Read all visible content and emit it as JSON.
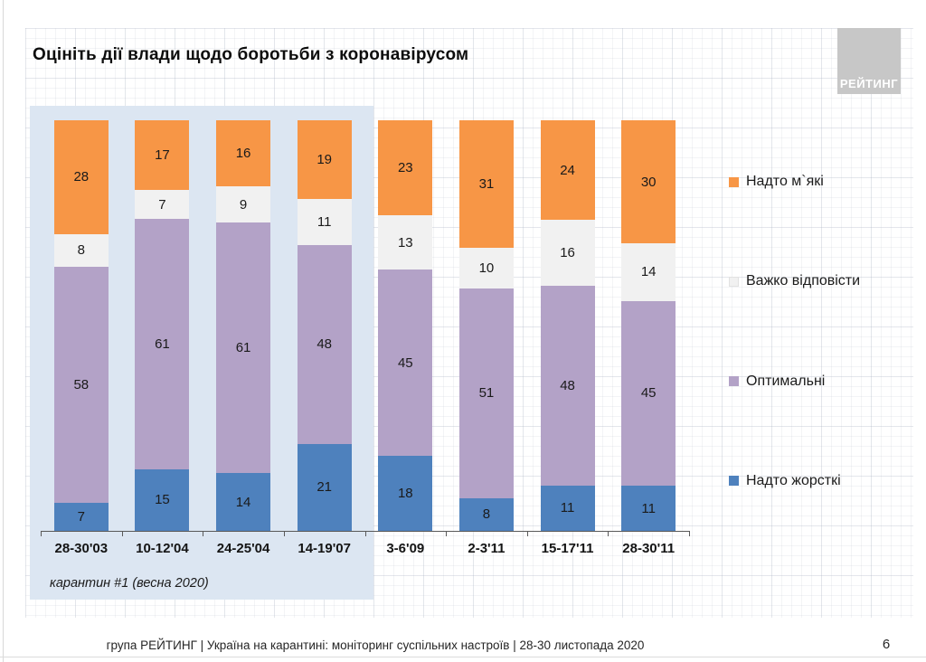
{
  "slide": {
    "title": "Оцініть дії влади щодо боротьби з коронавірусом",
    "logo_text": "РЕЙТИНГ",
    "footer": "група РЕЙТИНГ | Україна на карантині: моніторинг суспільних настроїв | 28-30 листопада 2020",
    "page_number": "6"
  },
  "colors": {
    "too_soft_orange": "#f79646",
    "hard_to_say_white": "#f1f1f1",
    "optimal_purple": "#b3a2c7",
    "too_harsh_blue": "#4e81bd",
    "highlight_background": "#dce6f2",
    "logo_gray": "#c7c7c7",
    "axis_gray": "#595959"
  },
  "chart_data": {
    "type": "bar",
    "stacked": true,
    "percent_scale": true,
    "grid": false,
    "legend_position": "right",
    "categories": [
      "28-30'03",
      "10-12'04",
      "24-25'04",
      "14-19'07",
      "3-6'09",
      "2-3'11",
      "15-17'11",
      "28-30'11"
    ],
    "series": [
      {
        "key": "too-harsh",
        "name": "Надто жорсткі",
        "color": "#4e81bd",
        "values": [
          7,
          15,
          14,
          21,
          18,
          8,
          11,
          11
        ]
      },
      {
        "key": "optimal",
        "name": "Оптимальні",
        "color": "#b3a2c7",
        "values": [
          58,
          61,
          61,
          48,
          45,
          51,
          48,
          45
        ]
      },
      {
        "key": "hard-to-say",
        "name": "Важко відповісти",
        "color": "#f1f1f1",
        "values": [
          8,
          7,
          9,
          11,
          13,
          10,
          16,
          14
        ]
      },
      {
        "key": "too-soft",
        "name": "Надто м`які",
        "color": "#f79646",
        "values": [
          28,
          17,
          16,
          19,
          23,
          31,
          24,
          30
        ]
      }
    ],
    "legend": [
      {
        "key": "too-soft",
        "label": "Надто м`які",
        "color": "#f79646",
        "light": false
      },
      {
        "key": "hard-to-say",
        "label": "Важко відповісти",
        "color": "#f1f1f1",
        "light": true
      },
      {
        "key": "optimal",
        "label": "Оптимальні",
        "color": "#b3a2c7",
        "light": false
      },
      {
        "key": "too-harsh",
        "label": "Надто жорсткі",
        "color": "#4e81bd",
        "light": false
      }
    ],
    "highlight": {
      "label": "карантин #1 (весна 2020)",
      "category_span": [
        "28-30'03",
        "14-19'07"
      ]
    }
  }
}
